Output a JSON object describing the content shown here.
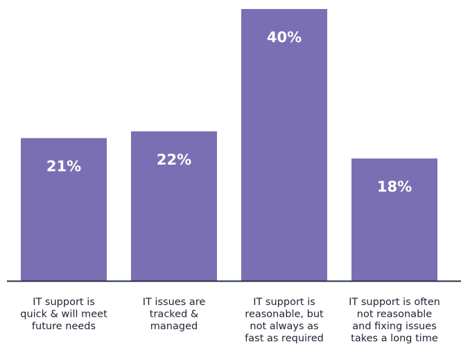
{
  "chart_data": {
    "type": "bar",
    "categories": [
      [
        "IT support is",
        "quick & will meet",
        "future needs"
      ],
      [
        "IT issues are",
        "tracked &",
        "managed"
      ],
      [
        "IT support is",
        "reasonable, but",
        "not always as",
        "fast as required"
      ],
      [
        "IT support is often",
        "not reasonable",
        "and fixing issues",
        "takes a long time"
      ]
    ],
    "values": [
      21,
      22,
      40,
      18
    ],
    "value_labels": [
      "21%",
      "22%",
      "40%",
      "18%"
    ],
    "ylim": [
      0,
      40
    ],
    "grid": false,
    "legend": "none",
    "colors": {
      "bar": "#7b6fb4",
      "value_text": "#ffffff",
      "baseline": "#1d3044",
      "label_text": "#1f2233"
    }
  }
}
